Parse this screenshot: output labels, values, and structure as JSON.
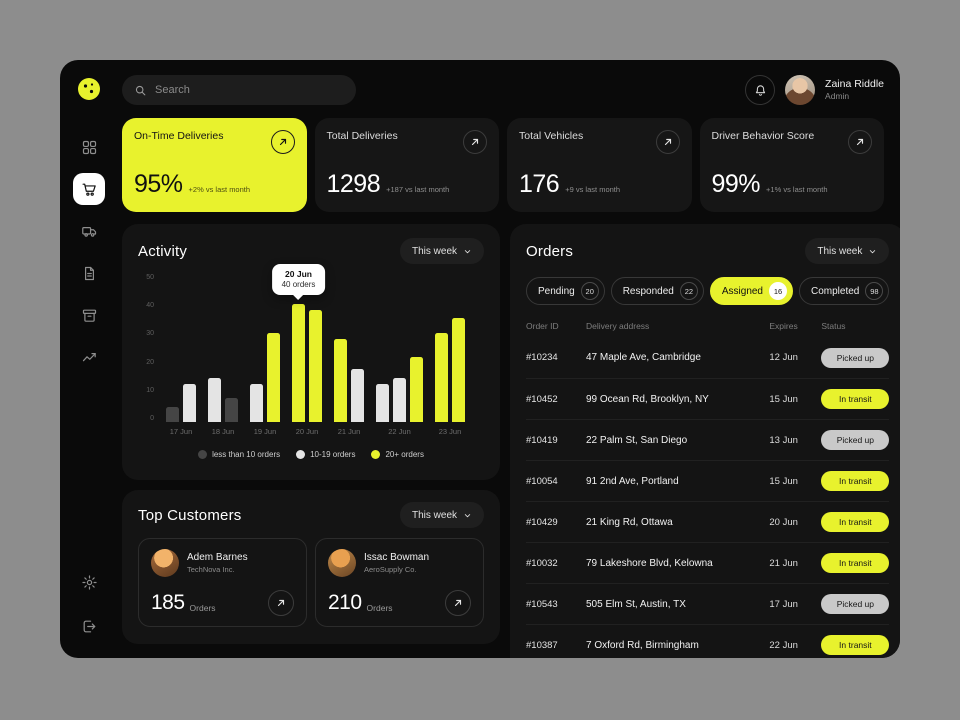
{
  "accent": "#e8f22d",
  "colors": {
    "low": "#454545",
    "mid": "#e4e4e4",
    "high": "#e8f22d",
    "status_gray": "#c9c9c9",
    "window_bg": "#0a0a0a",
    "panel_bg": "#141414"
  },
  "sidebar": {
    "items": [
      {
        "name": "dashboard",
        "icon": "grid-icon",
        "active": false
      },
      {
        "name": "orders",
        "icon": "cart-icon",
        "active": true
      },
      {
        "name": "fleet",
        "icon": "truck-icon",
        "active": false
      },
      {
        "name": "documents",
        "icon": "document-icon",
        "active": false
      },
      {
        "name": "packages",
        "icon": "package-icon",
        "active": false
      },
      {
        "name": "analytics",
        "icon": "chart-icon",
        "active": false
      }
    ],
    "footer_items": [
      {
        "name": "settings",
        "icon": "gear-icon"
      },
      {
        "name": "logout",
        "icon": "logout-icon"
      }
    ]
  },
  "topbar": {
    "search_placeholder": "Search",
    "user_name": "Zaina Riddle",
    "user_role": "Admin"
  },
  "kpis": [
    {
      "title": "On-Time Deliveries",
      "value": "95%",
      "delta": "+2% vs last month",
      "highlight": true
    },
    {
      "title": "Total Deliveries",
      "value": "1298",
      "delta": "+187 vs last month",
      "highlight": false
    },
    {
      "title": "Total Vehicles",
      "value": "176",
      "delta": "+9 vs last month",
      "highlight": false
    },
    {
      "title": "Driver Behavior Score",
      "value": "99%",
      "delta": "+1% vs last month",
      "highlight": false
    }
  ],
  "activity": {
    "title": "Activity",
    "range_label": "This week",
    "chart_data": {
      "type": "bar",
      "ylim": [
        0,
        50
      ],
      "y_ticks": [
        50,
        40,
        30,
        20,
        10,
        0
      ],
      "x_labels": [
        "17 Jun",
        "18 Jun",
        "19 Jun",
        "20 Jun",
        "21 Jun",
        "22 Jun",
        "23 Jun"
      ],
      "groups": [
        {
          "label": "17 Jun",
          "values": [
            5,
            13
          ]
        },
        {
          "label": "18 Jun",
          "values": [
            15,
            8
          ]
        },
        {
          "label": "19 Jun",
          "values": [
            13,
            30
          ]
        },
        {
          "label": "20 Jun",
          "values": [
            40,
            38
          ]
        },
        {
          "label": "21 Jun",
          "values": [
            28,
            18
          ]
        },
        {
          "label": "22 Jun",
          "values": [
            13,
            15,
            22
          ]
        },
        {
          "label": "23 Jun",
          "values": [
            30,
            35
          ]
        }
      ],
      "thresholds": {
        "low_max": 9,
        "mid_max": 19
      },
      "legend": [
        {
          "label": "less than 10 orders",
          "color_key": "low"
        },
        {
          "label": "10-19 orders",
          "color_key": "mid"
        },
        {
          "label": "20+ orders",
          "color_key": "high"
        }
      ],
      "tooltip": {
        "title": "20 Jun",
        "text": "40 orders",
        "group_index": 3,
        "bar_index": 0
      }
    }
  },
  "orders": {
    "title": "Orders",
    "range_label": "This week",
    "tabs": [
      {
        "label": "Pending",
        "count": "20",
        "active": false
      },
      {
        "label": "Responded",
        "count": "22",
        "active": false
      },
      {
        "label": "Assigned",
        "count": "16",
        "active": true
      },
      {
        "label": "Completed",
        "count": "98",
        "active": false
      }
    ],
    "columns": [
      "Order ID",
      "Delivery address",
      "Expires",
      "Status"
    ],
    "rows": [
      {
        "id": "#10234",
        "address": "47 Maple Ave, Cambridge",
        "expires": "12 Jun",
        "status": "Picked up"
      },
      {
        "id": "#10452",
        "address": "99 Ocean Rd, Brooklyn, NY",
        "expires": "15 Jun",
        "status": "In transit"
      },
      {
        "id": "#10419",
        "address": "22 Palm St, San Diego",
        "expires": "13 Jun",
        "status": "Picked up"
      },
      {
        "id": "#10054",
        "address": "91 2nd Ave, Portland",
        "expires": "15 Jun",
        "status": "In transit"
      },
      {
        "id": "#10429",
        "address": "21 King Rd, Ottawa",
        "expires": "20 Jun",
        "status": "In transit"
      },
      {
        "id": "#10032",
        "address": "79 Lakeshore Blvd, Kelowna",
        "expires": "21 Jun",
        "status": "In transit"
      },
      {
        "id": "#10543",
        "address": "505 Elm St, Austin, TX",
        "expires": "17 Jun",
        "status": "Picked up"
      },
      {
        "id": "#10387",
        "address": "7 Oxford Rd, Birmingham",
        "expires": "22 Jun",
        "status": "In transit"
      }
    ],
    "status_styles": {
      "Picked up": "gray",
      "In transit": "yellow"
    }
  },
  "customers": {
    "title": "Top Customers",
    "range_label": "This week",
    "cards": [
      {
        "name": "Adem Barnes",
        "company": "TechNova Inc.",
        "orders": "185",
        "orders_label": "Orders"
      },
      {
        "name": "Issac Bowman",
        "company": "AeroSupply Co.",
        "orders": "210",
        "orders_label": "Orders"
      }
    ]
  }
}
